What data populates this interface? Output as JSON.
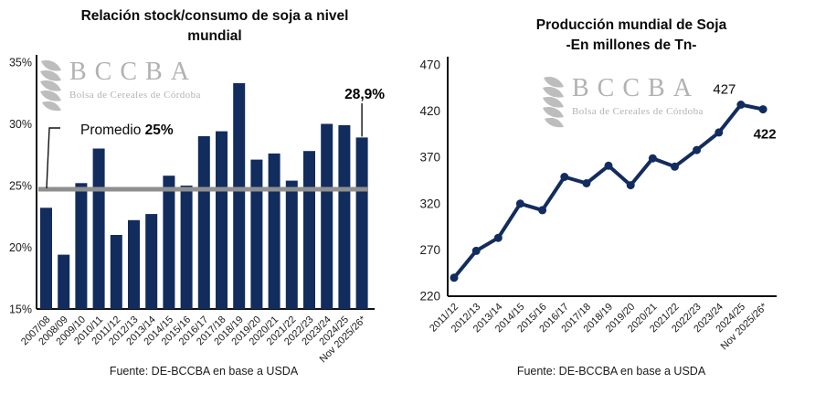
{
  "colors": {
    "navy": "#122C5E",
    "average_line_gray": "#8F8F8F",
    "watermark_gray": "#B2B2B2",
    "axis_black": "#111111"
  },
  "watermark": {
    "brand": "BCCBA",
    "subtitle": "Bolsa de Cereales de Córdoba"
  },
  "chart_data": [
    {
      "type": "bar",
      "title_lines": [
        "Relación stock/consumo de soja a nivel",
        "mundial"
      ],
      "categories": [
        "2007/08",
        "2008/09",
        "2009/10",
        "2010/11",
        "2011/12",
        "2012/13",
        "2013/14",
        "2014/15",
        "2015/16",
        "2016/17",
        "2017/18",
        "2018/19",
        "2019/20",
        "2020/21",
        "2021/22",
        "2022/23",
        "2023/24",
        "2024/25",
        "Nov 2025/26*"
      ],
      "values": [
        23.2,
        19.4,
        25.2,
        28.0,
        21.0,
        22.2,
        22.7,
        25.8,
        25.0,
        29.0,
        29.4,
        33.3,
        27.1,
        27.6,
        25.4,
        27.8,
        30.0,
        29.9,
        28.9
      ],
      "unit": "%",
      "ylim": [
        15,
        35
      ],
      "yticks": [
        35,
        30,
        25,
        20,
        15
      ],
      "ytick_suffix": "%",
      "grid": false,
      "legend": false,
      "average_line": {
        "value": 25,
        "label_prefix": "Promedio ",
        "label_value": "25%"
      },
      "last_value_label": "28,9%",
      "source": "Fuente: DE-BCCBA en base a USDA"
    },
    {
      "type": "line",
      "title_lines": [
        "Producción mundial de Soja",
        "-En millones de Tn-"
      ],
      "categories": [
        "2011/12",
        "2012/13",
        "2013/14",
        "2014/15",
        "2015/16",
        "2016/17",
        "2017/18",
        "2018/19",
        "2019/20",
        "2020/21",
        "2021/22",
        "2022/23",
        "2023/24",
        "2024/25",
        "Nov 2025/26*"
      ],
      "values": [
        240,
        269,
        283,
        320,
        313,
        349,
        342,
        361,
        340,
        369,
        360,
        378,
        397,
        427,
        422
      ],
      "ylim": [
        220,
        470
      ],
      "yticks": [
        470,
        420,
        370,
        320,
        270,
        220
      ],
      "grid": false,
      "legend": false,
      "annotations": [
        {
          "index": 13,
          "label": "427",
          "bold": false,
          "position": "above"
        },
        {
          "index": 14,
          "label": "422",
          "bold": true,
          "position": "below"
        }
      ],
      "source": "Fuente: DE-BCCBA en base a USDA"
    }
  ]
}
